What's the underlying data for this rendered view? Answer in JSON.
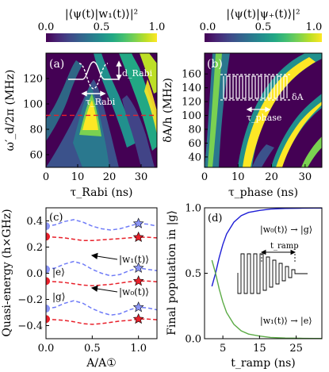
{
  "colorbars": [
    {
      "label": "|⟨ψ(t)|w₁(t)⟩|²",
      "ticks": [
        "0.0",
        "0.5",
        "1.0"
      ]
    },
    {
      "label": "|⟨ψ(t)|ψ₊(t)⟩|²",
      "ticks": [
        "0.0",
        "0.5",
        "1.0"
      ]
    }
  ],
  "colormap": [
    "#440154",
    "#482475",
    "#414487",
    "#355f8d",
    "#2a788e",
    "#21908d",
    "#22a884",
    "#44bf70",
    "#7ad151",
    "#bddf26",
    "#fde725"
  ],
  "chart_data": [
    {
      "panel": "(a)",
      "type": "heatmap",
      "xlabel": "τ_Rabi (ns)",
      "ylabel": "ω′_d/2π (MHz)",
      "xlim": [
        0,
        35
      ],
      "ylim": [
        50,
        140
      ],
      "xticks": [
        "0",
        "10",
        "20",
        "30"
      ],
      "yticks": [
        "60",
        "80",
        "100",
        "120"
      ],
      "reference_line": {
        "y": 91,
        "color": "#e8202a",
        "style": "dashed"
      },
      "inset_labels": [
        "d_Rabi",
        "τ_Rabi"
      ],
      "value_scale": [
        0,
        1
      ]
    },
    {
      "panel": "(b)",
      "type": "heatmap",
      "xlabel": "τ_phase (ns)",
      "ylabel": "δA/h (MHz)",
      "xlim": [
        0,
        35
      ],
      "ylim": [
        25,
        190
      ],
      "xticks": [
        "0",
        "10",
        "20",
        "30"
      ],
      "yticks": [
        "40",
        "60",
        "80",
        "100",
        "120",
        "140",
        "160"
      ],
      "inset_labels": [
        "δA",
        "τ_phase"
      ],
      "value_scale": [
        0,
        1
      ]
    },
    {
      "panel": "(c)",
      "type": "line",
      "xlabel": "A/A①",
      "ylabel": "Quasi-energy (h×GHz)",
      "xlim": [
        0,
        1.2
      ],
      "ylim": [
        -0.5,
        0.5
      ],
      "xticks": [
        "0.0",
        "0.5",
        "1.0"
      ],
      "yticks": [
        "−0.4",
        "−0.2",
        "0.0",
        "0.2",
        "0.4"
      ],
      "x": [
        0.0,
        0.1,
        0.2,
        0.3,
        0.4,
        0.5,
        0.6,
        0.7,
        0.8,
        0.9,
        1.0,
        1.1,
        1.2
      ],
      "series": [
        {
          "values": [
            0.36,
            0.37,
            0.395,
            0.41,
            0.39,
            0.36,
            0.34,
            0.33,
            0.34,
            0.36,
            0.38,
            0.375,
            0.36
          ],
          "color": "#6f7bf7"
        },
        {
          "values": [
            0.28,
            0.275,
            0.27,
            0.26,
            0.25,
            0.25,
            0.255,
            0.26,
            0.265,
            0.27,
            0.275,
            0.275,
            0.27
          ],
          "color": "#e8202a"
        },
        {
          "values": [
            0.03,
            0.04,
            0.07,
            0.09,
            0.07,
            0.03,
            0.0,
            -0.02,
            -0.01,
            0.02,
            0.04,
            0.03,
            0.02
          ],
          "color": "#6f7bf7"
        },
        {
          "values": [
            -0.06,
            -0.065,
            -0.07,
            -0.08,
            -0.09,
            -0.095,
            -0.09,
            -0.085,
            -0.075,
            -0.065,
            -0.06,
            -0.06,
            -0.065
          ],
          "color": "#e8202a"
        },
        {
          "values": [
            -0.27,
            -0.26,
            -0.23,
            -0.21,
            -0.23,
            -0.27,
            -0.3,
            -0.32,
            -0.31,
            -0.28,
            -0.26,
            -0.265,
            -0.28
          ],
          "color": "#6f7bf7"
        },
        {
          "values": [
            -0.35,
            -0.355,
            -0.36,
            -0.37,
            -0.385,
            -0.39,
            -0.385,
            -0.375,
            -0.365,
            -0.36,
            -0.35,
            -0.35,
            -0.355
          ],
          "color": "#e8202a"
        }
      ],
      "markers": {
        "circles_x": 0.0,
        "circles_blue": [
          0.36,
          0.03,
          -0.27
        ],
        "circles_red": [
          0.28,
          -0.06,
          -0.35
        ],
        "stars_x": 1.0,
        "stars_blue": [
          0.38,
          0.04,
          -0.26
        ],
        "stars_red": [
          0.275,
          -0.06,
          -0.35
        ]
      },
      "annotations": [
        "|e⟩",
        "|g⟩",
        "|w₁(t)⟩",
        "|w₀(t)⟩"
      ]
    },
    {
      "panel": "(d)",
      "type": "line",
      "xlabel": "t_ramp (ns)",
      "ylabel": "Final population in |g⟩",
      "xlim": [
        0,
        32
      ],
      "ylim": [
        0,
        1
      ],
      "xticks": [
        "5",
        "15",
        "25"
      ],
      "yticks": [
        "0.0",
        "0.5",
        "1.0"
      ],
      "x": [
        2,
        3,
        4,
        5,
        6,
        8,
        10,
        12,
        15,
        18,
        22,
        26,
        30,
        32
      ],
      "series": [
        {
          "values": [
            0.4,
            0.5,
            0.62,
            0.72,
            0.8,
            0.89,
            0.94,
            0.965,
            0.98,
            0.99,
            0.995,
            0.997,
            0.998,
            0.998
          ],
          "color": "#1e1ed6"
        },
        {
          "values": [
            0.6,
            0.5,
            0.38,
            0.28,
            0.2,
            0.11,
            0.06,
            0.035,
            0.02,
            0.01,
            0.005,
            0.003,
            0.002,
            0.002
          ],
          "color": "#5cab46"
        }
      ],
      "annotations": [
        "|w₀(t)⟩ → |g⟩",
        "|w₁(t)⟩ → |e⟩",
        "t_ramp"
      ]
    }
  ]
}
